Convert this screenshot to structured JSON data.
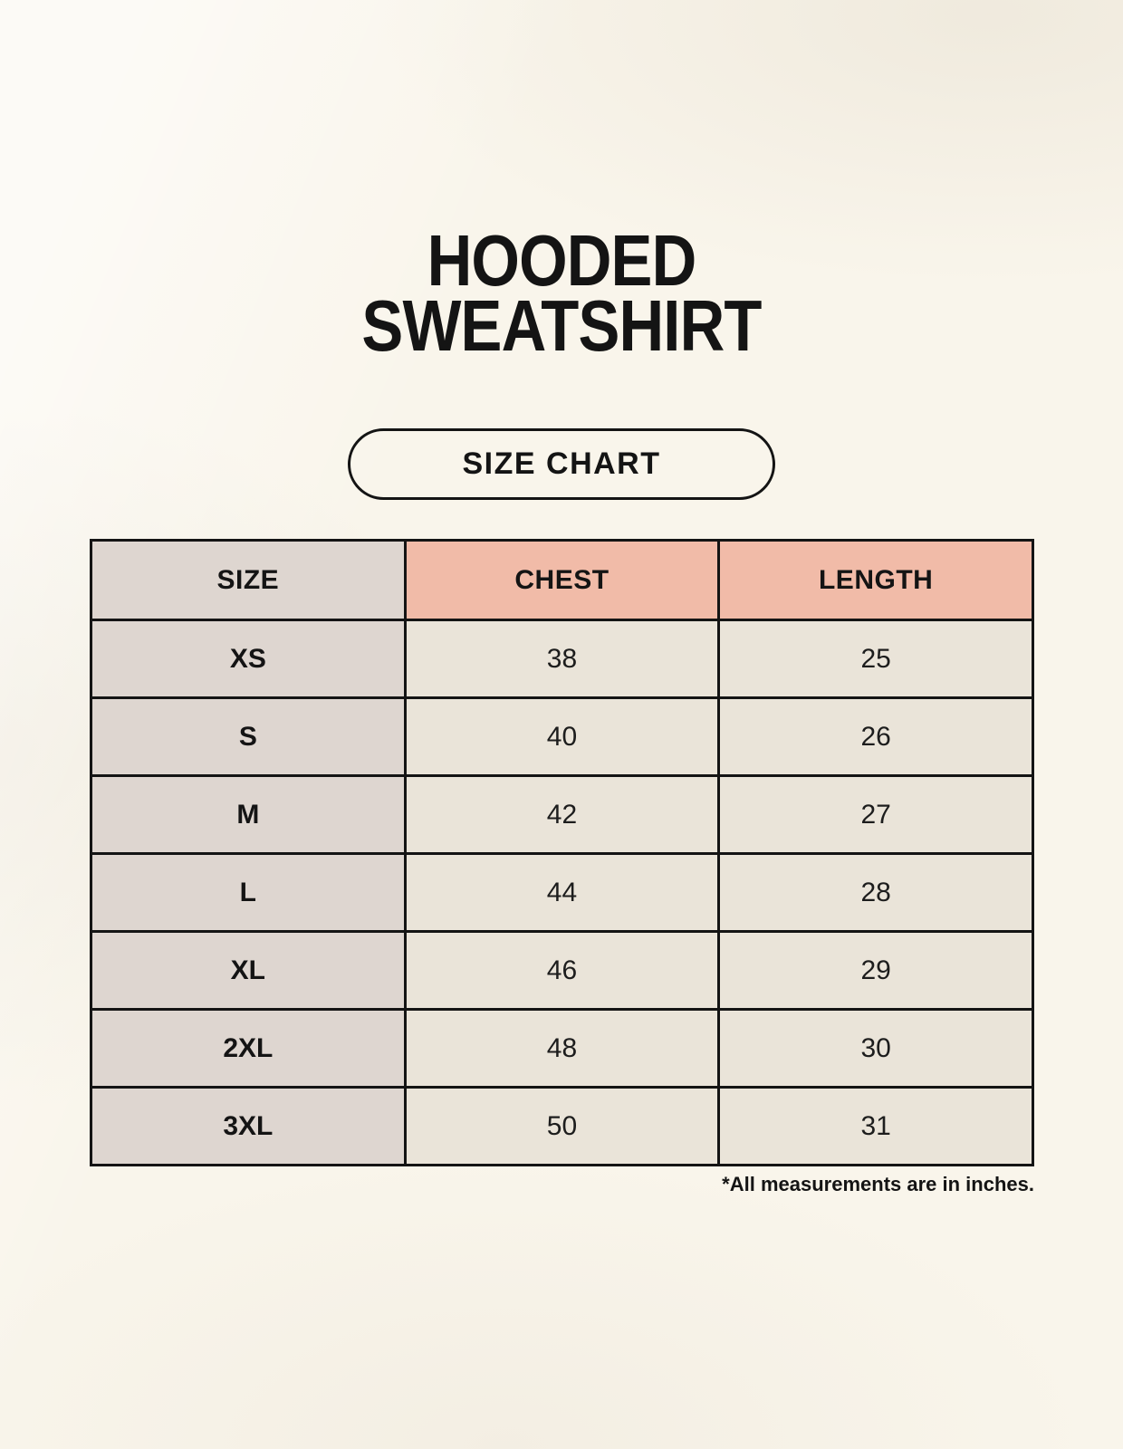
{
  "page": {
    "title_line1": "HOODED",
    "title_line2": "SWEATSHIRT",
    "badge_label": "SIZE CHART",
    "footnote": "*All measurements are in inches."
  },
  "colors": {
    "background": "#f9f5eb",
    "accent_salmon": "#f1bba8",
    "size_column_bg": "#ded6d0",
    "data_cell_bg": "#eae4d9",
    "border": "#141414",
    "text": "#141414"
  },
  "chart_data": {
    "type": "table",
    "title": "HOODED SWEATSHIRT",
    "subtitle": "SIZE CHART",
    "columns": [
      "SIZE",
      "CHEST",
      "LENGTH"
    ],
    "rows": [
      {
        "size": "XS",
        "chest": "38",
        "length": "25"
      },
      {
        "size": "S",
        "chest": "40",
        "length": "26"
      },
      {
        "size": "M",
        "chest": "42",
        "length": "27"
      },
      {
        "size": "L",
        "chest": "44",
        "length": "28"
      },
      {
        "size": "XL",
        "chest": "46",
        "length": "29"
      },
      {
        "size": "2XL",
        "chest": "48",
        "length": "30"
      },
      {
        "size": "3XL",
        "chest": "50",
        "length": "31"
      }
    ],
    "units_note": "*All measurements are in inches."
  }
}
